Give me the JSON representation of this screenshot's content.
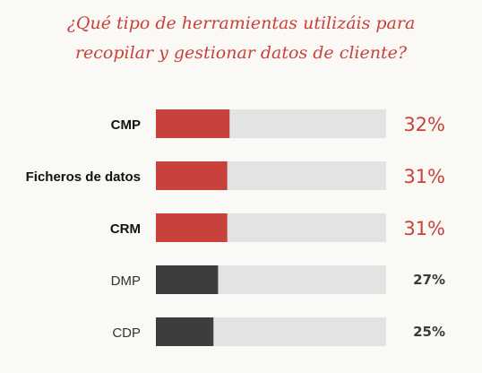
{
  "chart_data": {
    "type": "bar",
    "orientation": "horizontal",
    "title_lines": [
      "¿Qué tipo de herramientas utilizáis para",
      "recopilar y gestionar datos de cliente?"
    ],
    "categories": [
      "CMP",
      "Ficheros de datos",
      "CRM",
      "DMP",
      "CDP"
    ],
    "values": [
      32,
      31,
      31,
      27,
      25
    ],
    "value_labels": [
      "32%",
      "31%",
      "31%",
      "27%",
      "25%"
    ],
    "xlim": [
      0,
      100
    ],
    "grid": false,
    "legend": "none",
    "highlighted": [
      true,
      true,
      true,
      false,
      false
    ]
  },
  "colors": {
    "background": "#faf9f5",
    "title": "#c8413a",
    "highlight_bar": "#c8413a",
    "normal_bar": "#3d3d3d",
    "track": "#e3e3e3",
    "highlight_value": "#c8413a",
    "normal_value": "#3a3a3a",
    "highlight_label": "#111111",
    "normal_label": "#333333"
  }
}
